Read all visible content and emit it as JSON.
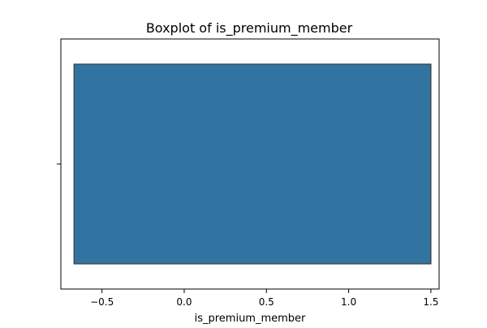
{
  "chart_data": {
    "type": "boxplot",
    "orientation": "horizontal",
    "title": "Boxplot of is_premium_member",
    "xlabel": "is_premium_member",
    "ylabel": "",
    "xlim": [
      -0.75,
      1.55
    ],
    "xticks": [
      -0.5,
      0.0,
      0.5,
      1.0,
      1.5
    ],
    "xtick_labels": [
      "−0.5",
      "0.0",
      "0.5",
      "1.0",
      "1.5"
    ],
    "box": {
      "whisker_low": -0.67,
      "q1": -0.67,
      "median": 1.5,
      "q3": 1.5,
      "whisker_high": 1.5
    },
    "grid": false,
    "colors": {
      "box_fill": "#3274a1",
      "box_edge": "#3f3f3f",
      "axis": "#000000"
    }
  }
}
